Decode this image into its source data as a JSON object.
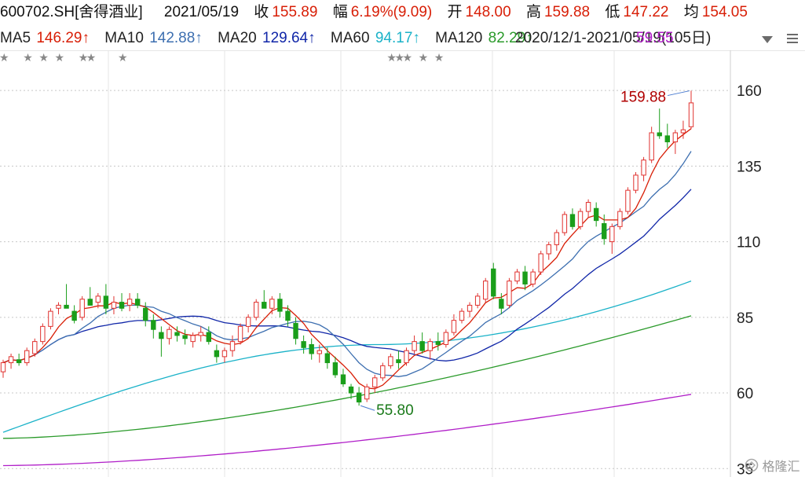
{
  "header": {
    "code": "600702.SH[舍得酒业]",
    "date": "2021/05/19",
    "close_label": "收",
    "close": "155.89",
    "change_label": "幅",
    "change": "6.19%(9.09)",
    "open_label": "开",
    "open": "148.00",
    "high_label": "高",
    "high": "159.88",
    "low_label": "低",
    "low": "147.22",
    "avg_label": "均",
    "avg": "154.05"
  },
  "ma_legend": [
    {
      "label": "MA5",
      "value": "146.29↑",
      "color": "#d81e06"
    },
    {
      "label": "MA10",
      "value": "142.88↑",
      "color": "#3d6fb0"
    },
    {
      "label": "MA20",
      "value": "129.64↑",
      "color": "#1026a8"
    },
    {
      "label": "MA60",
      "value": "94.17↑",
      "color": "#1ab2c8"
    },
    {
      "label": "MA120",
      "value": "82.29↑",
      "color": "#2a9a2a"
    },
    {
      "label": "",
      "value": "59.55",
      "color": "#b01ec8"
    }
  ],
  "ma_range_text": "2020/12/1-2021/05/19(105日)",
  "watermark": "格隆汇",
  "chart_data": {
    "type": "candlestick",
    "y_ticks": [
      160,
      135,
      110,
      85,
      60,
      35
    ],
    "ylim": [
      33,
      166
    ],
    "high_label": "159.88",
    "low_label": "55.80",
    "star_markers_at_index": [
      0,
      3,
      5,
      7,
      10,
      11,
      15,
      49,
      50,
      51,
      53,
      55
    ],
    "candles": [
      {
        "o": 67,
        "h": 71,
        "l": 65,
        "c": 70
      },
      {
        "o": 70,
        "h": 73,
        "l": 68,
        "c": 72
      },
      {
        "o": 71,
        "h": 73,
        "l": 69,
        "c": 70
      },
      {
        "o": 70,
        "h": 75,
        "l": 69,
        "c": 74
      },
      {
        "o": 73,
        "h": 78,
        "l": 72,
        "c": 77
      },
      {
        "o": 77,
        "h": 83,
        "l": 76,
        "c": 82
      },
      {
        "o": 82,
        "h": 88,
        "l": 81,
        "c": 87
      },
      {
        "o": 88,
        "h": 90,
        "l": 86,
        "c": 89
      },
      {
        "o": 89,
        "h": 96,
        "l": 88,
        "c": 88
      },
      {
        "o": 87,
        "h": 89,
        "l": 83,
        "c": 84
      },
      {
        "o": 85,
        "h": 92,
        "l": 84,
        "c": 91
      },
      {
        "o": 91,
        "h": 95,
        "l": 89,
        "c": 89
      },
      {
        "o": 90,
        "h": 93,
        "l": 88,
        "c": 92
      },
      {
        "o": 92,
        "h": 96,
        "l": 86,
        "c": 88
      },
      {
        "o": 88,
        "h": 92,
        "l": 86,
        "c": 90
      },
      {
        "o": 90,
        "h": 93,
        "l": 87,
        "c": 88
      },
      {
        "o": 89,
        "h": 93,
        "l": 87,
        "c": 91
      },
      {
        "o": 91,
        "h": 93,
        "l": 88,
        "c": 89
      },
      {
        "o": 88,
        "h": 90,
        "l": 82,
        "c": 84
      },
      {
        "o": 84,
        "h": 86,
        "l": 78,
        "c": 81
      },
      {
        "o": 80,
        "h": 82,
        "l": 72,
        "c": 78
      },
      {
        "o": 78,
        "h": 82,
        "l": 76,
        "c": 81
      },
      {
        "o": 80,
        "h": 82,
        "l": 77,
        "c": 79
      },
      {
        "o": 79,
        "h": 81,
        "l": 76,
        "c": 78
      },
      {
        "o": 77,
        "h": 80,
        "l": 75,
        "c": 79
      },
      {
        "o": 79,
        "h": 82,
        "l": 77,
        "c": 80
      },
      {
        "o": 80,
        "h": 82,
        "l": 76,
        "c": 77
      },
      {
        "o": 74,
        "h": 76,
        "l": 70,
        "c": 72
      },
      {
        "o": 72,
        "h": 75,
        "l": 70,
        "c": 74
      },
      {
        "o": 74,
        "h": 79,
        "l": 72,
        "c": 77
      },
      {
        "o": 77,
        "h": 83,
        "l": 76,
        "c": 82
      },
      {
        "o": 82,
        "h": 86,
        "l": 80,
        "c": 85
      },
      {
        "o": 85,
        "h": 91,
        "l": 84,
        "c": 90
      },
      {
        "o": 90,
        "h": 94,
        "l": 88,
        "c": 88
      },
      {
        "o": 88,
        "h": 92,
        "l": 86,
        "c": 91
      },
      {
        "o": 91,
        "h": 93,
        "l": 85,
        "c": 87
      },
      {
        "o": 87,
        "h": 89,
        "l": 82,
        "c": 84
      },
      {
        "o": 83,
        "h": 85,
        "l": 76,
        "c": 78
      },
      {
        "o": 77,
        "h": 79,
        "l": 73,
        "c": 75
      },
      {
        "o": 76,
        "h": 78,
        "l": 71,
        "c": 73
      },
      {
        "o": 73,
        "h": 76,
        "l": 70,
        "c": 74
      },
      {
        "o": 73,
        "h": 75,
        "l": 68,
        "c": 70
      },
      {
        "o": 70,
        "h": 72,
        "l": 65,
        "c": 66
      },
      {
        "o": 66,
        "h": 68,
        "l": 62,
        "c": 63
      },
      {
        "o": 62,
        "h": 63,
        "l": 58,
        "c": 60
      },
      {
        "o": 60,
        "h": 62,
        "l": 55.8,
        "c": 57
      },
      {
        "o": 58,
        "h": 63,
        "l": 57,
        "c": 62
      },
      {
        "o": 62,
        "h": 66,
        "l": 60,
        "c": 65
      },
      {
        "o": 65,
        "h": 70,
        "l": 64,
        "c": 69
      },
      {
        "o": 69,
        "h": 73,
        "l": 68,
        "c": 72
      },
      {
        "o": 71,
        "h": 74,
        "l": 68,
        "c": 70
      },
      {
        "o": 70,
        "h": 75,
        "l": 69,
        "c": 74
      },
      {
        "o": 74,
        "h": 79,
        "l": 73,
        "c": 77
      },
      {
        "o": 77,
        "h": 80,
        "l": 73,
        "c": 74
      },
      {
        "o": 74,
        "h": 78,
        "l": 71,
        "c": 77
      },
      {
        "o": 77,
        "h": 80,
        "l": 74,
        "c": 76
      },
      {
        "o": 76,
        "h": 81,
        "l": 75,
        "c": 80
      },
      {
        "o": 80,
        "h": 86,
        "l": 79,
        "c": 84
      },
      {
        "o": 84,
        "h": 88,
        "l": 83,
        "c": 87
      },
      {
        "o": 87,
        "h": 90,
        "l": 85,
        "c": 89
      },
      {
        "o": 89,
        "h": 93,
        "l": 88,
        "c": 92
      },
      {
        "o": 91,
        "h": 98,
        "l": 90,
        "c": 97
      },
      {
        "o": 101,
        "h": 103,
        "l": 91,
        "c": 92
      },
      {
        "o": 91,
        "h": 93,
        "l": 86,
        "c": 88
      },
      {
        "o": 89,
        "h": 98,
        "l": 88,
        "c": 97
      },
      {
        "o": 97,
        "h": 101,
        "l": 96,
        "c": 100
      },
      {
        "o": 100,
        "h": 102,
        "l": 94,
        "c": 96
      },
      {
        "o": 96,
        "h": 101,
        "l": 95,
        "c": 100
      },
      {
        "o": 100,
        "h": 107,
        "l": 99,
        "c": 106
      },
      {
        "o": 106,
        "h": 110,
        "l": 104,
        "c": 109
      },
      {
        "o": 109,
        "h": 114,
        "l": 107,
        "c": 113
      },
      {
        "o": 113,
        "h": 120,
        "l": 112,
        "c": 119
      },
      {
        "o": 119,
        "h": 121,
        "l": 114,
        "c": 115
      },
      {
        "o": 115,
        "h": 121,
        "l": 114,
        "c": 120
      },
      {
        "o": 120,
        "h": 124,
        "l": 118,
        "c": 123
      },
      {
        "o": 121,
        "h": 123,
        "l": 115,
        "c": 117
      },
      {
        "o": 116,
        "h": 119,
        "l": 109,
        "c": 111
      },
      {
        "o": 110,
        "h": 116,
        "l": 106,
        "c": 115
      },
      {
        "o": 115,
        "h": 121,
        "l": 114,
        "c": 120
      },
      {
        "o": 120,
        "h": 128,
        "l": 119,
        "c": 127
      },
      {
        "o": 127,
        "h": 133,
        "l": 126,
        "c": 132
      },
      {
        "o": 132,
        "h": 138,
        "l": 130,
        "c": 137
      },
      {
        "o": 137,
        "h": 148,
        "l": 136,
        "c": 146
      },
      {
        "o": 146,
        "h": 154,
        "l": 144,
        "c": 145
      },
      {
        "o": 145,
        "h": 149,
        "l": 141,
        "c": 143
      },
      {
        "o": 143,
        "h": 147,
        "l": 139,
        "c": 146
      },
      {
        "o": 146,
        "h": 150,
        "l": 144,
        "c": 147
      },
      {
        "o": 148,
        "h": 159.88,
        "l": 147.22,
        "c": 155.89
      }
    ]
  }
}
